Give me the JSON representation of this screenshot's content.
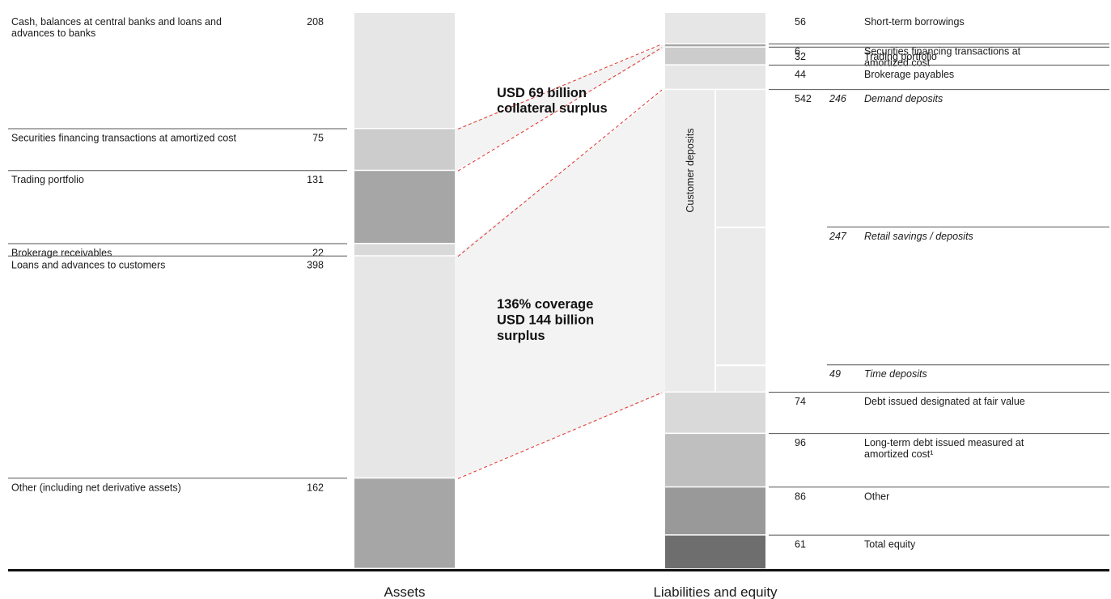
{
  "chart_data": {
    "type": "bar",
    "subtype": "stacked-balance-sheet",
    "unit": "USD billion",
    "categories": [
      "Assets",
      "Liabilities and equity"
    ],
    "assets": [
      {
        "label": "Cash, balances at central banks and loans and advances to banks",
        "value": 208,
        "color": "#e6e6e6"
      },
      {
        "label": "Securities financing transactions at amortized cost",
        "value": 75,
        "color": "#cccccc"
      },
      {
        "label": "Trading portfolio",
        "value": 131,
        "color": "#a6a6a6"
      },
      {
        "label": "Brokerage receivables",
        "value": 22,
        "color": "#d9d9d9"
      },
      {
        "label": "Loans and advances to customers",
        "value": 398,
        "color": "#e6e6e6"
      },
      {
        "label": "Other (including net derivative assets)",
        "value": 162,
        "color": "#a6a6a6"
      }
    ],
    "liabilities": [
      {
        "label": "Short-term borrowings",
        "value": 56,
        "color": "#e6e6e6"
      },
      {
        "label": "Securities financing transactions at amortized cost",
        "value": 6,
        "color": "#a6a6a6"
      },
      {
        "label": "Trading portfolio",
        "value": 32,
        "color": "#cccccc"
      },
      {
        "label": "Brokerage payables",
        "value": 44,
        "color": "#e6e6e6"
      },
      {
        "label": "",
        "value": 542,
        "group": "customer_deposits",
        "color": "#e6e6e6"
      },
      {
        "label": "Debt issued designated at fair value",
        "value": 74,
        "color": "#d9d9d9"
      },
      {
        "label": "Long-term debt issued measured at amortized cost¹",
        "value": 96,
        "color": "#bfbfbf"
      },
      {
        "label": "Other",
        "value": 86,
        "color": "#999999"
      },
      {
        "label": "Total equity",
        "value": 61,
        "color": "#6e6e6e"
      }
    ],
    "customer_deposits": {
      "label": "Customer deposits",
      "total": 542,
      "parts": [
        {
          "label": "Demand deposits",
          "value": 246
        },
        {
          "label": "Retail savings / deposits",
          "value": 247
        },
        {
          "label": "Time deposits",
          "value": 49
        }
      ]
    },
    "annotations": [
      {
        "lines": [
          "USD 69 billion",
          "collateral surplus"
        ]
      },
      {
        "lines": [
          "136% coverage",
          "",
          "USD 144 billion",
          "surplus"
        ]
      }
    ],
    "legend": "none",
    "grid": false
  }
}
